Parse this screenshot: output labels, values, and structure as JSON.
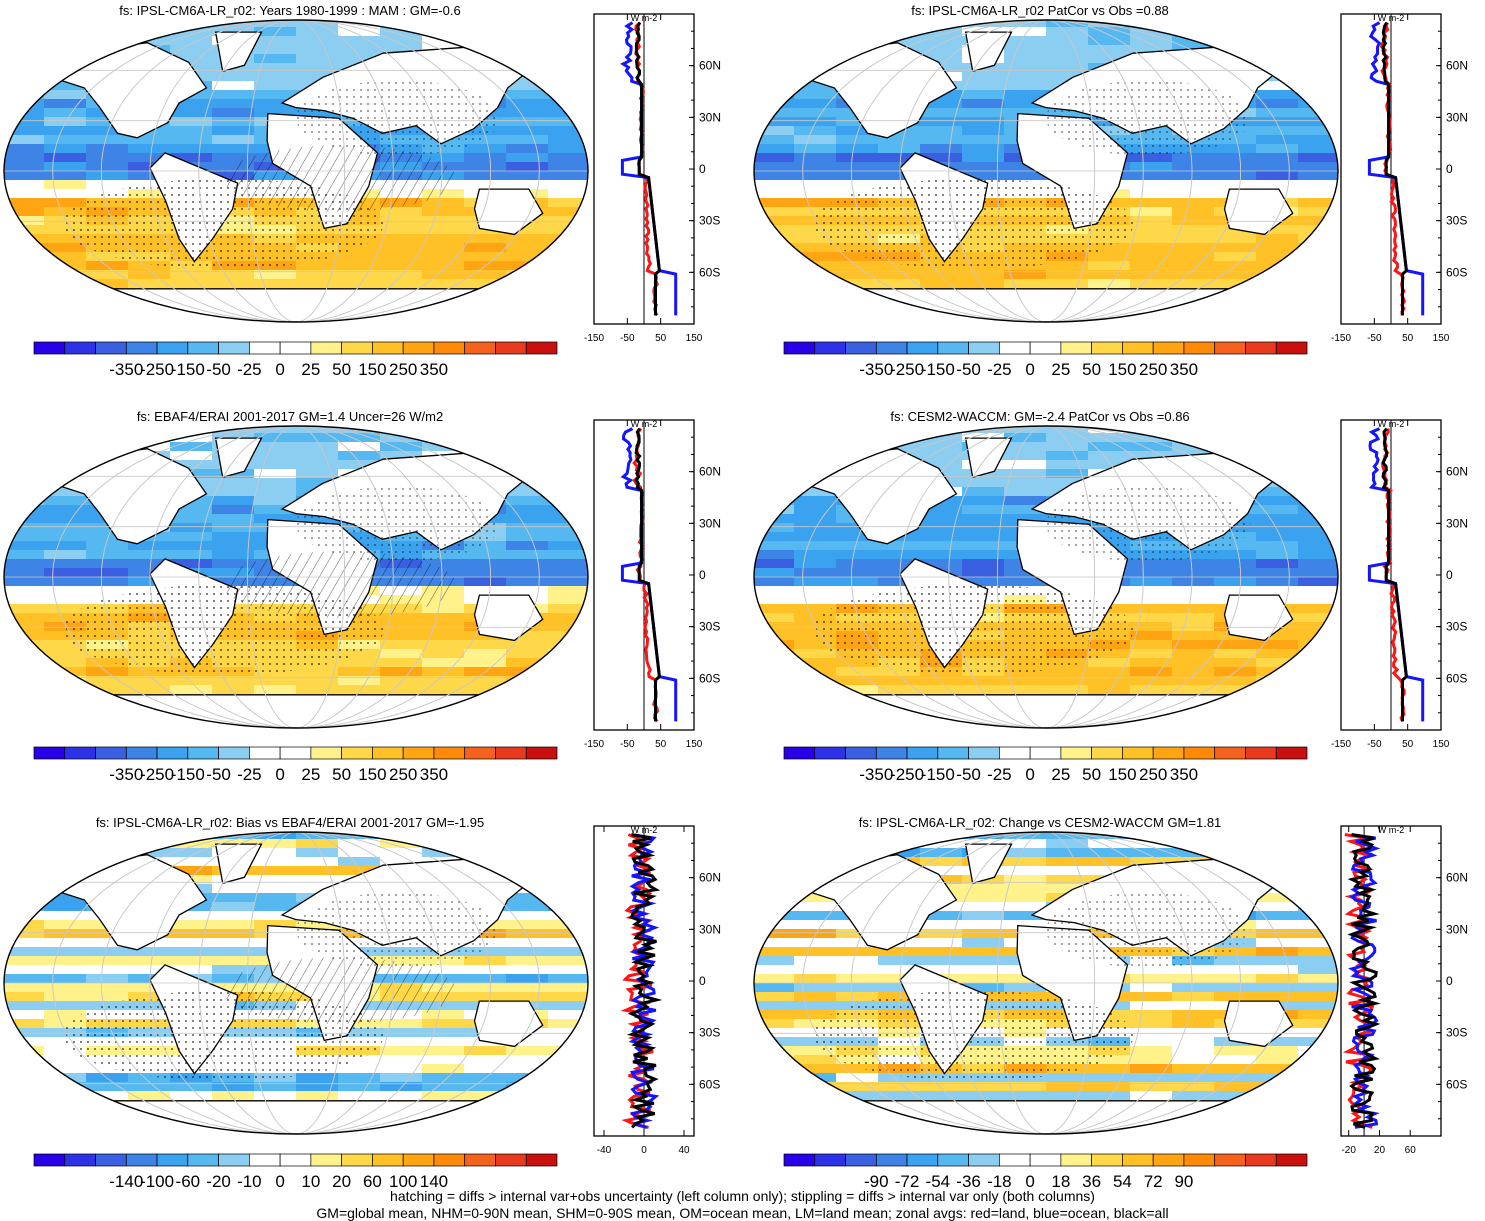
{
  "panels": [
    {
      "id": "p1",
      "title": "fs: IPSL-CM6A-LR_r02: Years 1980-1999 : MAM : GM=-0.6",
      "colorbar": {
        "labels": [
          "-350",
          "-250",
          "-150",
          "-50",
          "-25",
          "0",
          "25",
          "50",
          "150",
          "250",
          "350"
        ]
      },
      "zonal_axis": {
        "xticks": [
          "-150",
          "-50",
          "50",
          "150"
        ],
        "xlim": [
          -150,
          150
        ],
        "unit": "W m-2",
        "lat_labels": [
          "60N",
          "30N",
          "0",
          "30S",
          "60S"
        ]
      },
      "hatching": true
    },
    {
      "id": "p2",
      "title": "fs: IPSL-CM6A-LR_r02 PatCor vs Obs =0.88",
      "colorbar": {
        "labels": [
          "-350",
          "-250",
          "-150",
          "-50",
          "-25",
          "0",
          "25",
          "50",
          "150",
          "250",
          "350"
        ]
      },
      "zonal_axis": {
        "xticks": [
          "-150",
          "-50",
          "50",
          "150"
        ],
        "xlim": [
          -150,
          150
        ],
        "unit": "W m-2",
        "lat_labels": [
          "60N",
          "30N",
          "0",
          "30S",
          "60S"
        ]
      },
      "hatching": false
    },
    {
      "id": "p3",
      "title": "fs: EBAF4/ERAI 2001-2017 GM=1.4 Uncer=26 W/m2",
      "colorbar": {
        "labels": [
          "-350",
          "-250",
          "-150",
          "-50",
          "-25",
          "0",
          "25",
          "50",
          "150",
          "250",
          "350"
        ]
      },
      "zonal_axis": {
        "xticks": [
          "-150",
          "-50",
          "50",
          "150"
        ],
        "xlim": [
          -150,
          150
        ],
        "unit": "W m-2",
        "lat_labels": [
          "60N",
          "30N",
          "0",
          "30S",
          "60S"
        ]
      },
      "hatching": true
    },
    {
      "id": "p4",
      "title": "fs: CESM2-WACCM: GM=-2.4 PatCor vs Obs =0.86",
      "colorbar": {
        "labels": [
          "-350",
          "-250",
          "-150",
          "-50",
          "-25",
          "0",
          "25",
          "50",
          "150",
          "250",
          "350"
        ]
      },
      "zonal_axis": {
        "xticks": [
          "-150",
          "-50",
          "50",
          "150"
        ],
        "xlim": [
          -150,
          150
        ],
        "unit": "W m-2",
        "lat_labels": [
          "60N",
          "30N",
          "0",
          "30S",
          "60S"
        ]
      },
      "hatching": false
    },
    {
      "id": "p5",
      "title": "fs: IPSL-CM6A-LR_r02: Bias vs EBAF4/ERAI 2001-2017 GM=-1.95",
      "colorbar": {
        "labels": [
          "-140",
          "-100",
          "-60",
          "-20",
          "-10",
          "0",
          "10",
          "20",
          "60",
          "100",
          "140"
        ]
      },
      "zonal_axis": {
        "xticks": [
          "-40",
          "0",
          "40"
        ],
        "xlim": [
          -50,
          50
        ],
        "unit": "W m-2",
        "lat_labels": [
          "60N",
          "30N",
          "0",
          "30S",
          "60S"
        ]
      },
      "hatching": true
    },
    {
      "id": "p6",
      "title": "fs: IPSL-CM6A-LR_r02: Change vs CESM2-WACCM GM=1.81",
      "colorbar": {
        "labels": [
          "-90",
          "-72",
          "-54",
          "-36",
          "-18",
          "0",
          "18",
          "36",
          "54",
          "72",
          "90"
        ]
      },
      "zonal_axis": {
        "xticks": [
          "-20",
          "20",
          "60"
        ],
        "xlim": [
          -30,
          100
        ],
        "unit": "W m-2",
        "lat_labels": [
          "60N",
          "30N",
          "0",
          "30S",
          "60S"
        ]
      },
      "hatching": false
    }
  ],
  "colors": {
    "palette": [
      "#2a00e8",
      "#2d32e6",
      "#3a5fe0",
      "#3d84e6",
      "#3aa2ee",
      "#56b8f0",
      "#8ccdf2",
      "#ffffff",
      "#ffffff",
      "#fff28a",
      "#ffd84a",
      "#ffc125",
      "#ffa514",
      "#ff8a0a",
      "#f4621e",
      "#e83a1e",
      "#c8100f"
    ],
    "land": "#ffffff",
    "ocean_neutral": "#ffffff",
    "line_land": "#ff1414",
    "line_ocean": "#1414ff",
    "line_all": "#000000"
  },
  "footer": {
    "line1": "hatching = diffs > internal var+obs uncertainty (left column only); stippling = diffs > internal var only (both columns)",
    "line2": "GM=global mean, NHM=0-90N mean, SHM=0-90S mean, OM=ocean mean, LM=land mean; zonal avgs: red=land, blue=ocean, black=all"
  }
}
